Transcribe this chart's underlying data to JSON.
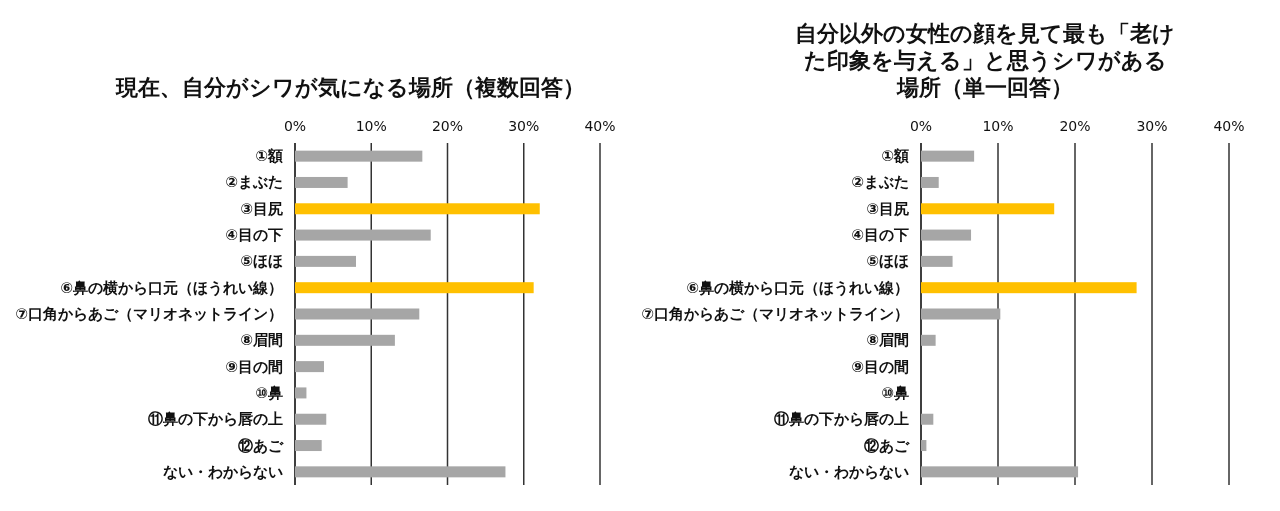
{
  "chart_data": [
    {
      "type": "bar",
      "orientation": "horizontal",
      "title": "現在、自分がシワが気になる場所（複数回答）",
      "categories": [
        "①額",
        "②まぶた",
        "③目尻",
        "④目の下",
        "⑤ほほ",
        "⑥鼻の横から口元（ほうれい線）",
        "⑦口角からあご（マリオネットライン）",
        "⑧眉間",
        "⑨目の間",
        "⑩鼻",
        "⑪鼻の下から唇の上",
        "⑫あご",
        "ない・わからない"
      ],
      "values": [
        16.7,
        6.9,
        32.1,
        17.8,
        8.0,
        31.3,
        16.3,
        13.1,
        3.8,
        1.5,
        4.1,
        3.5,
        27.6
      ],
      "colors": [
        "#a6a6a6",
        "#a6a6a6",
        "#ffc000",
        "#a6a6a6",
        "#a6a6a6",
        "#ffc000",
        "#a6a6a6",
        "#a6a6a6",
        "#a6a6a6",
        "#a6a6a6",
        "#a6a6a6",
        "#a6a6a6",
        "#a6a6a6"
      ],
      "xlim": [
        0,
        40
      ],
      "xticks": [
        {
          "value": 0,
          "label": "0%"
        },
        {
          "value": 10,
          "label": "10%"
        },
        {
          "value": 20,
          "label": "20%"
        },
        {
          "value": 30,
          "label": "30%"
        },
        {
          "value": 40,
          "label": "40%"
        }
      ],
      "grid": "x"
    },
    {
      "type": "bar",
      "orientation": "horizontal",
      "title": "自分以外の女性の顔を見て最も「老けた印象を与える」と思うシワがある場所（単一回答）",
      "categories": [
        "①額",
        "②まぶた",
        "③目尻",
        "④目の下",
        "⑤ほほ",
        "⑥鼻の横から口元（ほうれい線）",
        "⑦口角からあご（マリオネットライン）",
        "⑧眉間",
        "⑨目の間",
        "⑩鼻",
        "⑪鼻の下から唇の上",
        "⑫あご",
        "ない・わからない"
      ],
      "values": [
        6.9,
        2.3,
        17.3,
        6.5,
        4.1,
        28.0,
        10.3,
        1.9,
        null,
        null,
        1.6,
        0.7,
        20.4
      ],
      "colors": [
        "#a6a6a6",
        "#a6a6a6",
        "#ffc000",
        "#a6a6a6",
        "#a6a6a6",
        "#ffc000",
        "#a6a6a6",
        "#a6a6a6",
        null,
        null,
        "#a6a6a6",
        "#a6a6a6",
        "#a6a6a6"
      ],
      "xlim": [
        0,
        40
      ],
      "xticks": [
        {
          "value": 0,
          "label": "0%"
        },
        {
          "value": 10,
          "label": "10%"
        },
        {
          "value": 20,
          "label": "20%"
        },
        {
          "value": 30,
          "label": "30%"
        },
        {
          "value": 40,
          "label": "40%"
        }
      ],
      "grid": "x"
    }
  ]
}
